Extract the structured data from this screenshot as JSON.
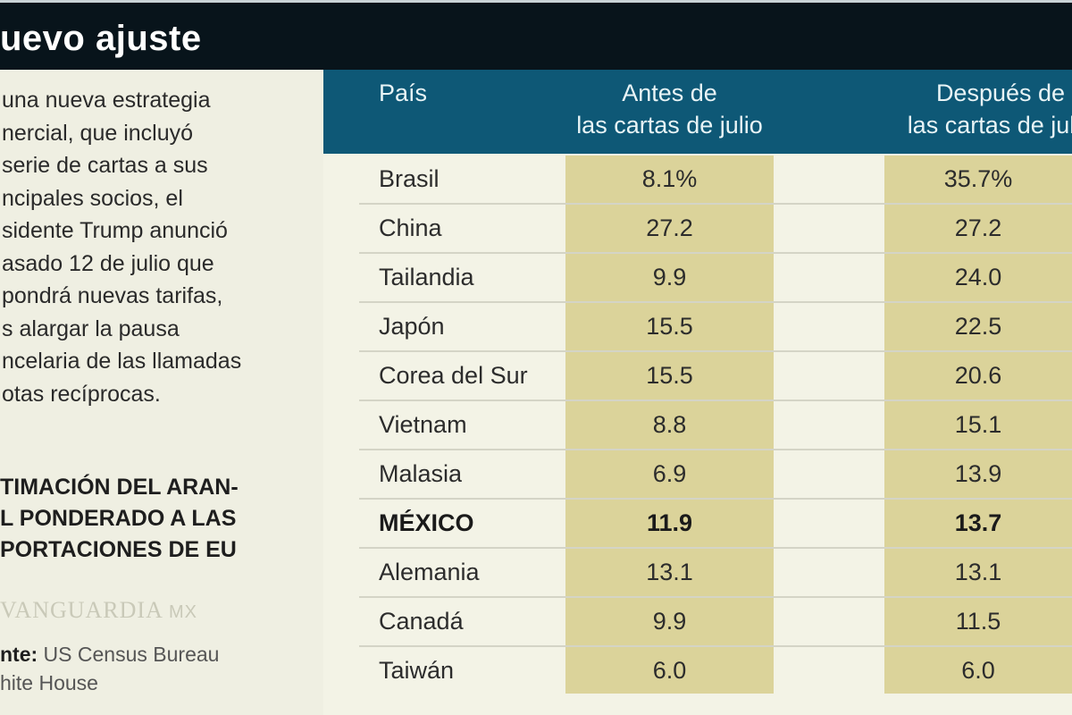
{
  "title": "uevo ajuste",
  "intro": "una nueva estrategia\nnercial, que incluyó\n serie de cartas a sus\nncipales socios, el\nsidente Trump anunció\nasado 12 de julio que\npondrá nuevas tarifas,\ns alargar la pausa\nncelaria de las llamadas\notas recíprocas.",
  "subtitle": "TIMACIÓN DEL ARAN-\nL PONDERADO A LAS\nPORTACIONES DE EU",
  "source": {
    "label": "nte:",
    "text": " US Census Bureau\nhite House"
  },
  "table": {
    "headers": [
      "País",
      "Antes de\nlas cartas de julio",
      "Después de\nlas cartas de julio"
    ],
    "rows": [
      {
        "pais": "Brasil",
        "antes": "8.1%",
        "despues": "35.7%"
      },
      {
        "pais": "China",
        "antes": "27.2",
        "despues": "27.2"
      },
      {
        "pais": "Tailandia",
        "antes": "9.9",
        "despues": "24.0"
      },
      {
        "pais": "Japón",
        "antes": "15.5",
        "despues": "22.5"
      },
      {
        "pais": "Corea del Sur",
        "antes": "15.5",
        "despues": "20.6"
      },
      {
        "pais": "Vietnam",
        "antes": "8.8",
        "despues": "15.1"
      },
      {
        "pais": "Malasia",
        "antes": "6.9",
        "despues": "13.9"
      },
      {
        "pais": "MÉXICO",
        "antes": "11.9",
        "despues": "13.7"
      },
      {
        "pais": "Alemania",
        "antes": "13.1",
        "despues": "13.1"
      },
      {
        "pais": "Canadá",
        "antes": "9.9",
        "despues": "11.5"
      },
      {
        "pais": "Taiwán",
        "antes": "6.0",
        "despues": "6.0"
      }
    ]
  },
  "watermark": {
    "brand": "VANGUARDIA",
    "suffix": "MX"
  },
  "colors": {
    "title_bar": "#08141b",
    "header": "#0e5876",
    "highlight_column": "#dbd39a",
    "background": "#f1f1e4"
  }
}
